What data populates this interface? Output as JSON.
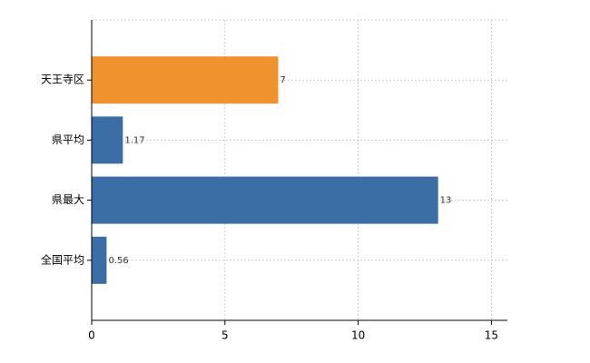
{
  "chart_data": {
    "type": "bar",
    "orientation": "horizontal",
    "categories": [
      "天王寺区",
      "県平均",
      "県最大",
      "全国平均"
    ],
    "values": [
      7,
      1.17,
      13,
      0.56
    ],
    "colors": [
      "#f0922e",
      "#3a6ea5",
      "#3a6ea5",
      "#3a6ea5"
    ],
    "xlim": [
      0,
      15.6
    ],
    "xticks": [
      0,
      5,
      10,
      15
    ],
    "grid": true
  }
}
